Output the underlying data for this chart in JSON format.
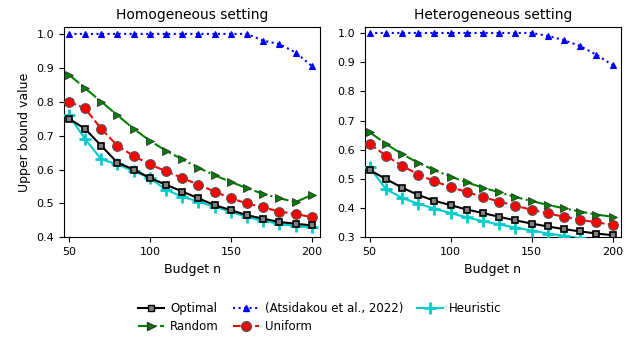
{
  "x": [
    50,
    60,
    70,
    80,
    90,
    100,
    110,
    120,
    130,
    140,
    150,
    160,
    170,
    180,
    190,
    200
  ],
  "homo": {
    "optimal": [
      0.75,
      0.72,
      0.67,
      0.62,
      0.6,
      0.575,
      0.555,
      0.535,
      0.515,
      0.495,
      0.48,
      0.465,
      0.455,
      0.445,
      0.44,
      0.435
    ],
    "uniform": [
      0.8,
      0.78,
      0.72,
      0.67,
      0.64,
      0.615,
      0.595,
      0.575,
      0.555,
      0.535,
      0.515,
      0.5,
      0.488,
      0.476,
      0.468,
      0.46
    ],
    "random": [
      0.88,
      0.84,
      0.8,
      0.76,
      0.72,
      0.685,
      0.655,
      0.63,
      0.605,
      0.583,
      0.563,
      0.545,
      0.528,
      0.515,
      0.504,
      0.525
    ],
    "heuristic": [
      0.76,
      0.69,
      0.63,
      0.615,
      0.595,
      0.575,
      0.54,
      0.52,
      0.505,
      0.49,
      0.475,
      0.46,
      0.448,
      0.44,
      0.433,
      0.43
    ],
    "atsidakou": [
      1.0,
      1.0,
      1.0,
      1.0,
      1.0,
      1.0,
      1.0,
      1.0,
      1.0,
      1.0,
      1.0,
      1.0,
      0.98,
      0.97,
      0.945,
      0.905
    ]
  },
  "hetero": {
    "optimal": [
      0.53,
      0.5,
      0.47,
      0.445,
      0.425,
      0.41,
      0.395,
      0.383,
      0.37,
      0.358,
      0.347,
      0.337,
      0.328,
      0.32,
      0.313,
      0.307
    ],
    "uniform": [
      0.62,
      0.58,
      0.545,
      0.515,
      0.492,
      0.472,
      0.455,
      0.438,
      0.422,
      0.408,
      0.394,
      0.382,
      0.37,
      0.36,
      0.351,
      0.343
    ],
    "random": [
      0.66,
      0.62,
      0.585,
      0.555,
      0.53,
      0.508,
      0.488,
      0.47,
      0.454,
      0.438,
      0.424,
      0.411,
      0.399,
      0.388,
      0.378,
      0.37
    ],
    "heuristic": [
      0.54,
      0.465,
      0.435,
      0.415,
      0.398,
      0.383,
      0.368,
      0.355,
      0.344,
      0.333,
      0.323,
      0.313,
      0.305,
      0.297,
      0.29,
      0.284
    ],
    "atsidakou": [
      1.0,
      1.0,
      1.0,
      1.0,
      1.0,
      1.0,
      1.0,
      1.0,
      1.0,
      1.0,
      1.0,
      0.99,
      0.975,
      0.955,
      0.925,
      0.89
    ]
  },
  "titles": [
    "Homogeneous setting",
    "Heterogeneous setting"
  ],
  "xlabel": "Budget n",
  "ylabel": "Upper bound value",
  "homo_ylim": [
    0.4,
    1.02
  ],
  "hetero_ylim": [
    0.3,
    1.02
  ],
  "homo_yticks": [
    0.4,
    0.5,
    0.6,
    0.7,
    0.8,
    0.9,
    1.0
  ],
  "hetero_yticks": [
    0.3,
    0.4,
    0.5,
    0.6,
    0.7,
    0.8,
    0.9,
    1.0
  ],
  "xticks": [
    50,
    100,
    150,
    200
  ],
  "colors": {
    "optimal": "#000000",
    "uniform": "#ff0000",
    "random": "#008000",
    "heuristic": "#00cccc",
    "atsidakou": "#0000ff"
  },
  "marker_face": {
    "optimal": "#808080",
    "uniform": "#ff0000",
    "random": "#008000",
    "heuristic": "#00cccc",
    "atsidakou": "#0000ff"
  },
  "legend_labels": {
    "optimal": "Optimal",
    "uniform": "Uniform",
    "random": "Random",
    "heuristic": "Heuristic",
    "atsidakou": "(Atsidakou et al., 2022)"
  }
}
